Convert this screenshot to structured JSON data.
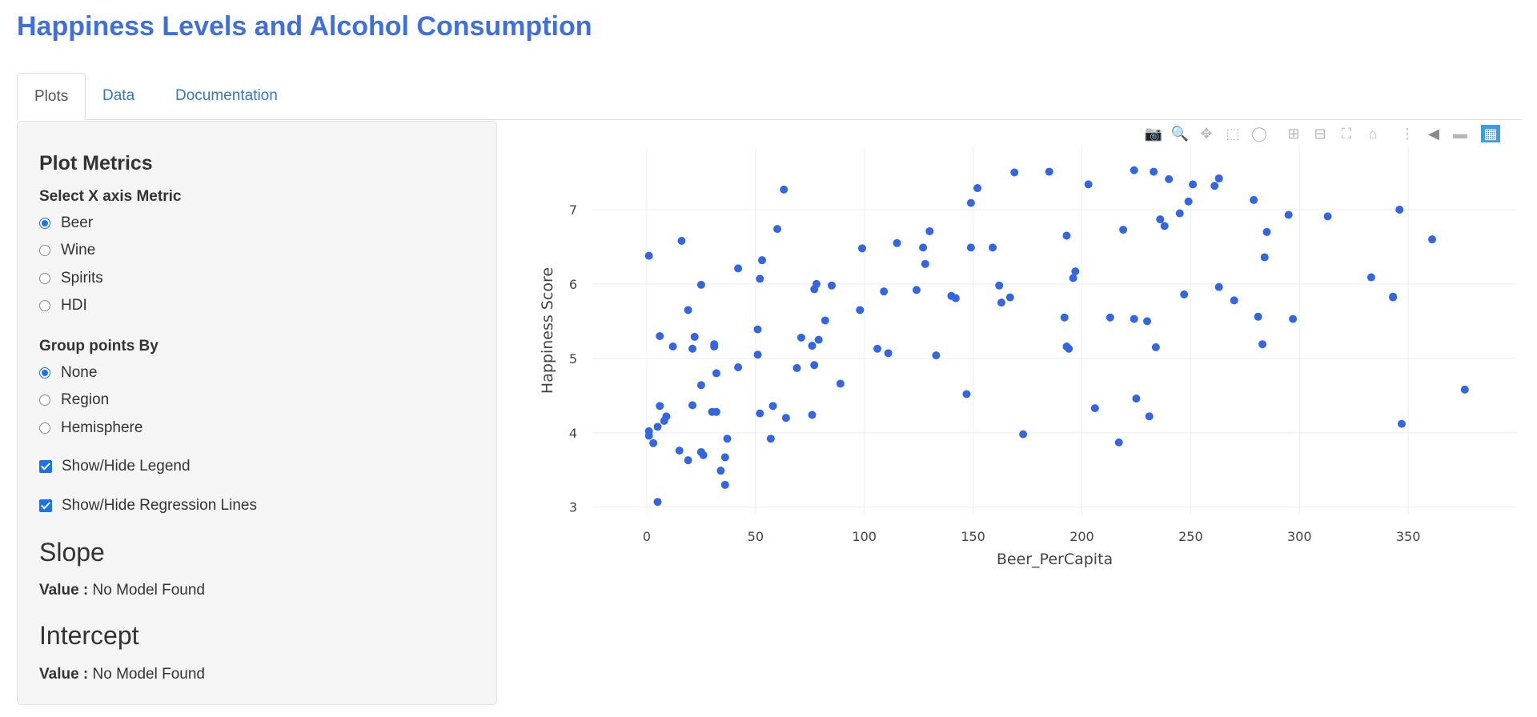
{
  "app": {
    "title": "Happiness Levels and Alcohol Consumption"
  },
  "tabs": [
    {
      "label": "Plots",
      "active": true
    },
    {
      "label": "Data",
      "active": false
    },
    {
      "label": "Documentation",
      "active": false
    }
  ],
  "sidebar": {
    "heading": "Plot Metrics",
    "x_metric": {
      "label": "Select X axis Metric",
      "options": [
        "Beer",
        "Wine",
        "Spirits",
        "HDI"
      ],
      "selected": "Beer"
    },
    "group_by": {
      "label": "Group points By",
      "options": [
        "None",
        "Region",
        "Hemisphere"
      ],
      "selected": "None"
    },
    "toggles": [
      {
        "label": "Show/Hide Legend",
        "checked": true
      },
      {
        "label": "Show/Hide Regression Lines",
        "checked": true
      }
    ],
    "slope": {
      "heading": "Slope",
      "value_label": "Value :",
      "value": "No Model Found"
    },
    "intercept": {
      "heading": "Intercept",
      "value_label": "Value :",
      "value": "No Model Found"
    }
  },
  "modebar": {
    "icons": [
      "camera-icon",
      "zoom-icon",
      "pan-icon",
      "box-select-icon",
      "lasso-select-icon",
      "zoom-in-icon",
      "zoom-out-icon",
      "autoscale-icon",
      "reset-axes-icon",
      "spike-lines-icon",
      "hover-closest-icon",
      "hover-compare-icon",
      "plotly-logo-icon"
    ]
  },
  "colors": {
    "title": "#3f6fdc",
    "marker": "#3366e0",
    "tab_link": "#337ab7",
    "accent": "#1a73e8"
  },
  "chart_data": {
    "type": "scatter",
    "xlabel": "Beer_PerCapita",
    "ylabel": "Happiness Score",
    "xlim": [
      -25,
      400
    ],
    "ylim": [
      2.9,
      7.85
    ],
    "xticks": [
      0,
      50,
      100,
      150,
      200,
      250,
      300,
      350
    ],
    "yticks": [
      3,
      4,
      5,
      6,
      7
    ],
    "grid": true,
    "marker_color": "#3366e0",
    "points": [
      [
        1,
        6.38
      ],
      [
        1,
        4.02
      ],
      [
        1,
        3.96
      ],
      [
        3,
        3.86
      ],
      [
        5,
        3.07
      ],
      [
        5,
        4.08
      ],
      [
        6,
        4.36
      ],
      [
        6,
        5.3
      ],
      [
        8,
        4.16
      ],
      [
        9,
        4.22
      ],
      [
        12,
        5.16
      ],
      [
        15,
        3.76
      ],
      [
        16,
        6.58
      ],
      [
        19,
        5.65
      ],
      [
        19,
        3.63
      ],
      [
        21,
        5.13
      ],
      [
        21,
        4.37
      ],
      [
        22,
        5.29
      ],
      [
        25,
        3.74
      ],
      [
        25,
        4.64
      ],
      [
        25,
        5.99
      ],
      [
        26,
        3.7
      ],
      [
        30,
        4.28
      ],
      [
        31,
        5.19
      ],
      [
        31,
        5.16
      ],
      [
        32,
        4.28
      ],
      [
        32,
        4.8
      ],
      [
        34,
        3.49
      ],
      [
        36,
        3.67
      ],
      [
        36,
        3.3
      ],
      [
        37,
        3.92
      ],
      [
        42,
        4.88
      ],
      [
        42,
        6.21
      ],
      [
        51,
        5.39
      ],
      [
        51,
        5.05
      ],
      [
        52,
        6.07
      ],
      [
        52,
        4.26
      ],
      [
        53,
        6.32
      ],
      [
        57,
        3.92
      ],
      [
        58,
        4.36
      ],
      [
        60,
        6.74
      ],
      [
        63,
        7.27
      ],
      [
        64,
        4.2
      ],
      [
        69,
        4.87
      ],
      [
        71,
        5.28
      ],
      [
        76,
        4.24
      ],
      [
        76,
        5.17
      ],
      [
        77,
        5.93
      ],
      [
        77,
        4.91
      ],
      [
        78,
        6.0
      ],
      [
        79,
        5.25
      ],
      [
        82,
        5.51
      ],
      [
        85,
        5.98
      ],
      [
        89,
        4.66
      ],
      [
        98,
        5.65
      ],
      [
        99,
        6.48
      ],
      [
        106,
        5.13
      ],
      [
        109,
        5.9
      ],
      [
        111,
        5.07
      ],
      [
        115,
        6.55
      ],
      [
        124,
        5.92
      ],
      [
        127,
        6.49
      ],
      [
        128,
        6.27
      ],
      [
        130,
        6.71
      ],
      [
        133,
        5.04
      ],
      [
        140,
        5.84
      ],
      [
        142,
        5.81
      ],
      [
        147,
        4.52
      ],
      [
        149,
        7.09
      ],
      [
        149,
        6.49
      ],
      [
        152,
        7.29
      ],
      [
        159,
        6.49
      ],
      [
        162,
        5.98
      ],
      [
        163,
        5.75
      ],
      [
        167,
        5.82
      ],
      [
        169,
        7.5
      ],
      [
        173,
        3.98
      ],
      [
        185,
        7.51
      ],
      [
        192,
        5.55
      ],
      [
        193,
        6.65
      ],
      [
        193,
        5.16
      ],
      [
        194,
        5.13
      ],
      [
        196,
        6.08
      ],
      [
        197,
        6.17
      ],
      [
        203,
        7.34
      ],
      [
        206,
        4.33
      ],
      [
        213,
        5.55
      ],
      [
        217,
        3.87
      ],
      [
        219,
        6.73
      ],
      [
        224,
        7.53
      ],
      [
        224,
        5.53
      ],
      [
        225,
        4.46
      ],
      [
        230,
        5.5
      ],
      [
        231,
        4.22
      ],
      [
        233,
        7.51
      ],
      [
        234,
        5.15
      ],
      [
        236,
        6.87
      ],
      [
        238,
        6.78
      ],
      [
        240,
        7.41
      ],
      [
        245,
        6.95
      ],
      [
        247,
        5.86
      ],
      [
        249,
        7.11
      ],
      [
        251,
        7.34
      ],
      [
        261,
        7.32
      ],
      [
        263,
        7.42
      ],
      [
        263,
        5.96
      ],
      [
        270,
        5.78
      ],
      [
        279,
        7.13
      ],
      [
        281,
        5.56
      ],
      [
        283,
        5.19
      ],
      [
        284,
        6.36
      ],
      [
        285,
        6.7
      ],
      [
        295,
        6.93
      ],
      [
        297,
        5.53
      ],
      [
        313,
        6.91
      ],
      [
        333,
        6.09
      ],
      [
        343,
        5.83
      ],
      [
        343,
        5.82
      ],
      [
        346,
        7.0
      ],
      [
        347,
        4.12
      ],
      [
        361,
        6.6
      ],
      [
        376,
        4.58
      ]
    ]
  }
}
